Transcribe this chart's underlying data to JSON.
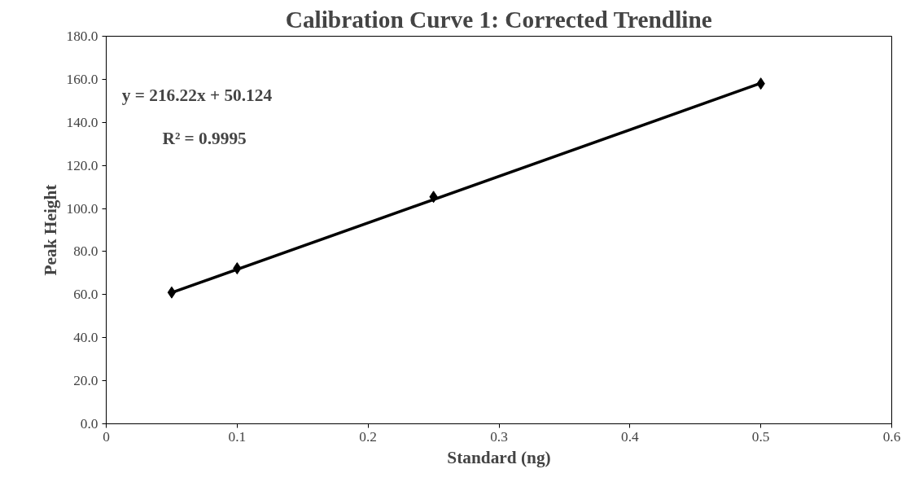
{
  "chart_data": {
    "type": "scatter",
    "title": "Calibration Curve 1: Corrected Trendline",
    "xlabel": "Standard (ng)",
    "ylabel": "Peak Height",
    "x": [
      0.05,
      0.1,
      0.25,
      0.5
    ],
    "series": [
      {
        "color": "#000000",
        "values": [
          61.0,
          72.2,
          105.4,
          158.0
        ],
        "marker": "diamond"
      },
      {
        "type": "line",
        "color": "#000000",
        "x": [
          0.05,
          0.5
        ],
        "values": [
          60.9,
          158.2
        ],
        "marker": "none",
        "line_style": "solid"
      }
    ],
    "annotations": [
      "y = 216.22x + 50.124",
      "R² = 0.9995"
    ],
    "xlim": [
      0,
      0.6
    ],
    "xticks": [
      {
        "value": 0,
        "label": "0"
      },
      0.1,
      0.2,
      0.3,
      0.4,
      0.5,
      0.6
    ],
    "ylim": [
      0,
      180
    ],
    "yticks": [
      {
        "value": 0,
        "label": "0.0"
      },
      {
        "value": 20,
        "label": "20.0"
      },
      {
        "value": 40,
        "label": "40.0"
      },
      {
        "value": 60,
        "label": "60.0"
      },
      {
        "value": 80,
        "label": "80.0"
      },
      {
        "value": 100,
        "label": "100.0"
      },
      {
        "value": 120,
        "label": "120.0"
      },
      {
        "value": 140,
        "label": "140.0"
      },
      {
        "value": 160,
        "label": "160.0"
      },
      {
        "value": 180,
        "label": "180.0"
      }
    ],
    "grid": false
  }
}
